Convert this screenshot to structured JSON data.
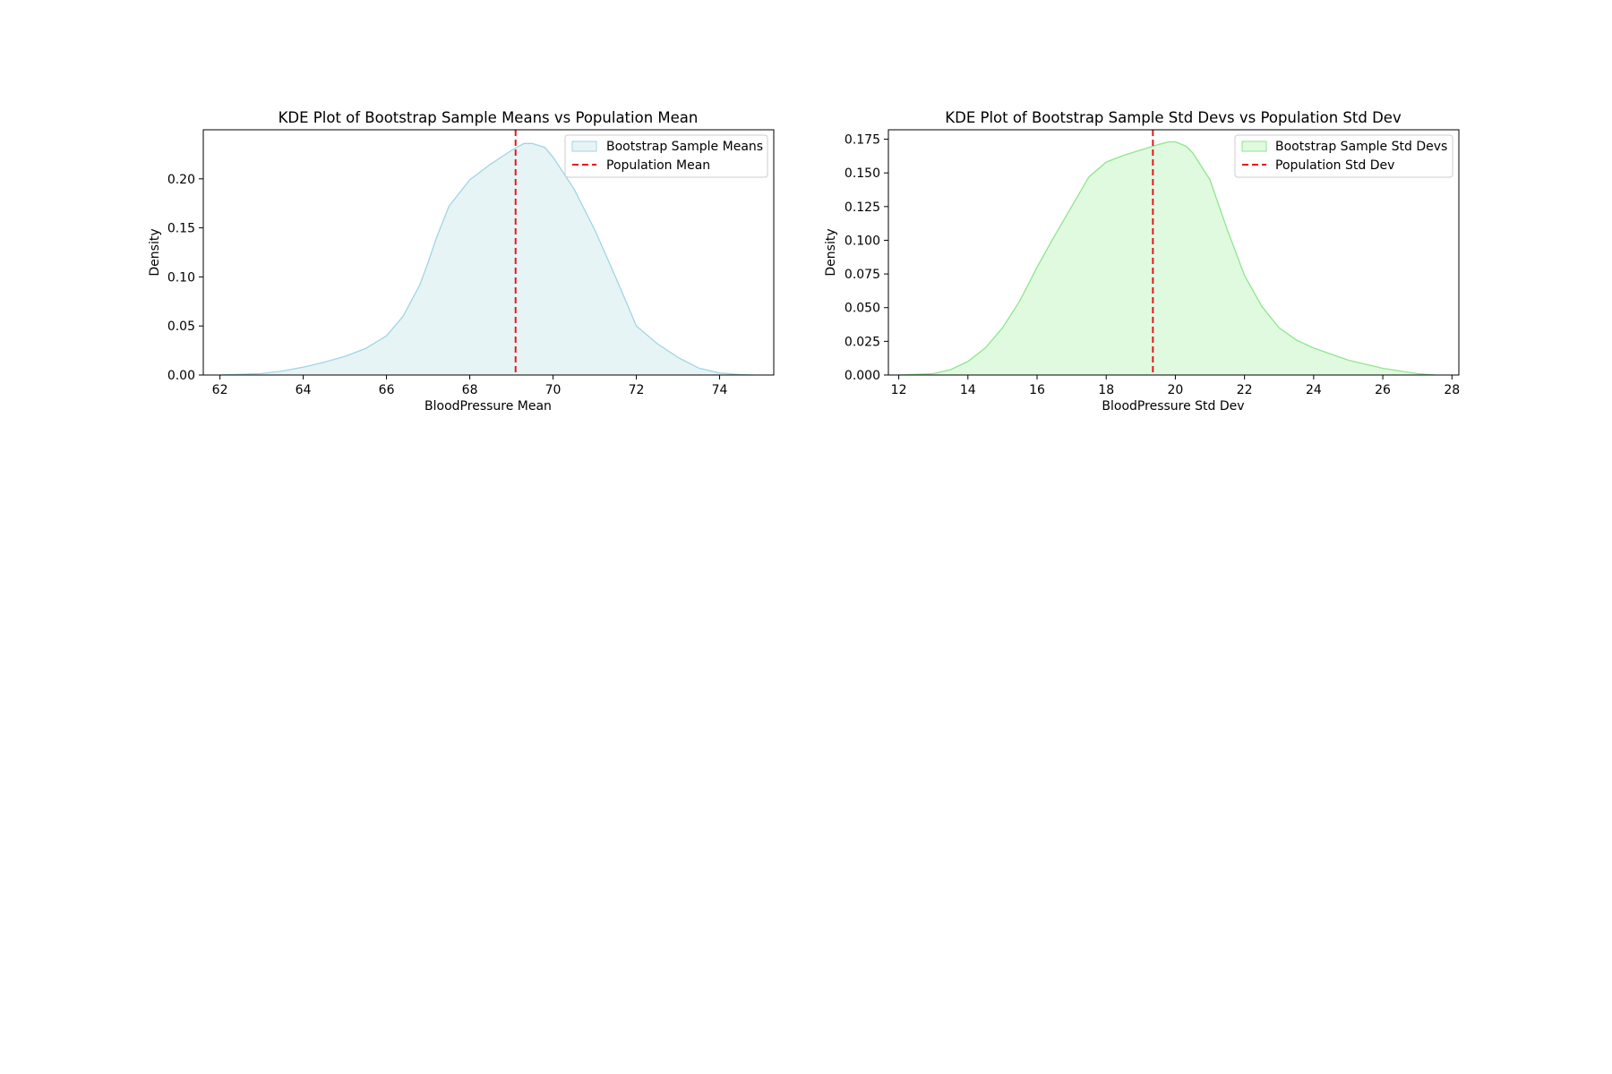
{
  "chart_data": [
    {
      "type": "area",
      "title": "KDE Plot of Bootstrap Sample Means vs Population Mean",
      "xlabel": "BloodPressure Mean",
      "ylabel": "Density",
      "xlim": [
        61.6,
        75.3
      ],
      "ylim": [
        0,
        0.25
      ],
      "xticks": [
        62,
        64,
        66,
        68,
        70,
        72,
        74
      ],
      "yticks": [
        0.0,
        0.05,
        0.1,
        0.15,
        0.2
      ],
      "ytick_decimals": 2,
      "grid": false,
      "legend_position": "top-right",
      "series": [
        {
          "name": "Bootstrap Sample Means",
          "kind": "kde-fill",
          "fill_color": "#e7f4f6",
          "line_color": "#9fd6e6",
          "x": [
            62.0,
            63.0,
            63.5,
            64.0,
            64.5,
            65.0,
            65.5,
            66.0,
            66.4,
            66.8,
            67.0,
            67.2,
            67.5,
            68.0,
            68.5,
            69.0,
            69.3,
            69.5,
            69.8,
            70.0,
            70.5,
            71.0,
            71.5,
            71.8,
            72.0,
            72.5,
            73.0,
            73.5,
            74.0,
            74.5,
            74.8
          ],
          "y": [
            0.0,
            0.0015,
            0.004,
            0.008,
            0.013,
            0.019,
            0.027,
            0.04,
            0.06,
            0.092,
            0.115,
            0.14,
            0.172,
            0.199,
            0.215,
            0.229,
            0.236,
            0.236,
            0.232,
            0.222,
            0.19,
            0.148,
            0.1,
            0.07,
            0.05,
            0.032,
            0.018,
            0.007,
            0.002,
            0.0005,
            0.0
          ]
        },
        {
          "name": "Population Mean",
          "kind": "vline",
          "x": 69.1,
          "color": "#e41a1c"
        }
      ]
    },
    {
      "type": "area",
      "title": "KDE Plot of Bootstrap Sample Std Devs vs Population Std Dev",
      "xlabel": "BloodPressure Std Dev",
      "ylabel": "Density",
      "xlim": [
        11.7,
        28.2
      ],
      "ylim": [
        0,
        0.182
      ],
      "xticks": [
        12,
        14,
        16,
        18,
        20,
        22,
        24,
        26,
        28
      ],
      "yticks": [
        0.0,
        0.025,
        0.05,
        0.075,
        0.1,
        0.125,
        0.15,
        0.175
      ],
      "ytick_decimals": 3,
      "grid": false,
      "legend_position": "top-right",
      "series": [
        {
          "name": "Bootstrap Sample Std Devs",
          "kind": "kde-fill",
          "fill_color": "#e0fae0",
          "line_color": "#8ee68e",
          "x": [
            12.0,
            13.0,
            13.5,
            14.0,
            14.5,
            15.0,
            15.5,
            16.0,
            16.5,
            17.0,
            17.5,
            18.0,
            18.5,
            19.0,
            19.5,
            19.8,
            20.0,
            20.3,
            20.5,
            21.0,
            21.5,
            22.0,
            22.5,
            23.0,
            23.5,
            24.0,
            25.0,
            26.0,
            26.5,
            27.0,
            27.5
          ],
          "y": [
            0.0,
            0.001,
            0.004,
            0.01,
            0.02,
            0.035,
            0.055,
            0.08,
            0.103,
            0.125,
            0.147,
            0.158,
            0.163,
            0.167,
            0.171,
            0.173,
            0.173,
            0.17,
            0.165,
            0.145,
            0.108,
            0.074,
            0.051,
            0.035,
            0.026,
            0.02,
            0.011,
            0.005,
            0.003,
            0.001,
            0.0
          ]
        },
        {
          "name": "Population Std Dev",
          "kind": "vline",
          "x": 19.35,
          "color": "#e41a1c"
        }
      ]
    }
  ]
}
